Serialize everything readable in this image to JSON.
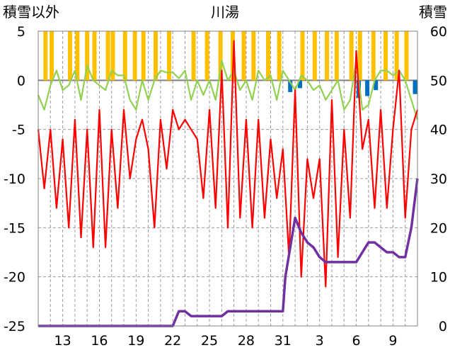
{
  "chart_data": {
    "type": "line",
    "title": "川湯",
    "ylabel_left": "積雪以外",
    "ylabel_right": "積雪",
    "ylim_left": [
      -25,
      5
    ],
    "yticks_left": [
      5,
      0,
      -5,
      -10,
      -15,
      -20,
      -25
    ],
    "ylim_right": [
      0,
      60
    ],
    "yticks_right": [
      60,
      50,
      40,
      30,
      20,
      10,
      0
    ],
    "xlim_day": [
      11,
      42
    ],
    "xticks": [
      {
        "label": "13",
        "day": 13
      },
      {
        "label": "16",
        "day": 16
      },
      {
        "label": "19",
        "day": 19
      },
      {
        "label": "22",
        "day": 22
      },
      {
        "label": "25",
        "day": 25
      },
      {
        "label": "28",
        "day": 28
      },
      {
        "label": "31",
        "day": 31
      },
      {
        "label": "3",
        "day": 34
      },
      {
        "label": "6",
        "day": 37
      },
      {
        "label": "9",
        "day": 40
      }
    ],
    "grid": true,
    "colors": {
      "temp_max": "#92d050",
      "temp_min": "#ff0000",
      "snow_depth": "#7030a0",
      "sunshine": "#ffc000",
      "precip": "#0070c0",
      "zero_line": "#808080"
    },
    "series": [
      {
        "key": "temp_max",
        "axis": "left",
        "x": [
          11,
          11.5,
          12,
          12.5,
          13,
          13.5,
          14,
          14.5,
          15,
          15.5,
          16,
          16.5,
          17,
          17.5,
          18,
          18.5,
          19,
          19.5,
          20,
          20.5,
          21,
          21.5,
          22,
          22.5,
          23,
          23.5,
          24,
          24.5,
          25,
          25.5,
          26,
          26.5,
          27,
          27.5,
          28,
          28.5,
          29,
          29.5,
          30,
          30.5,
          31,
          31.5,
          32,
          32.5,
          33,
          33.5,
          34,
          34.5,
          35,
          35.5,
          36,
          36.5,
          37,
          37.5,
          38,
          38.5,
          39,
          39.5,
          40,
          40.5,
          41,
          41.5,
          42
        ],
        "y": [
          -1.5,
          -3,
          -0.5,
          1,
          -1,
          -0.5,
          1,
          -2,
          1.5,
          0,
          -0.5,
          -1,
          1,
          0.5,
          0.5,
          -2,
          -3,
          0,
          -2,
          0,
          1,
          0.8,
          0.8,
          0.2,
          1,
          -2,
          0,
          -1.5,
          0,
          -2,
          2,
          0,
          1,
          -1,
          0,
          -2,
          1,
          0,
          0.5,
          -2,
          1,
          0,
          -1,
          0.5,
          0,
          -1,
          -0.5,
          -2,
          -1,
          0,
          -3,
          -2,
          2,
          -3,
          -2.5,
          0,
          1,
          1,
          0.5,
          1,
          0,
          -2,
          -4
        ]
      },
      {
        "key": "temp_min",
        "axis": "left",
        "x": [
          11,
          11.5,
          12,
          12.5,
          13,
          13.5,
          14,
          14.5,
          15,
          15.5,
          16,
          16.5,
          17,
          17.5,
          18,
          18.5,
          19,
          19.5,
          20,
          20.5,
          21,
          21.5,
          22,
          22.5,
          23,
          23.5,
          24,
          24.5,
          25,
          25.5,
          26,
          26.5,
          27,
          27.5,
          28,
          28.5,
          29,
          29.5,
          30,
          30.5,
          31,
          31.5,
          32,
          32.5,
          33,
          33.5,
          34,
          34.5,
          35,
          35.5,
          36,
          36.5,
          37,
          37.5,
          38,
          38.5,
          39,
          39.5,
          40,
          40.5,
          41,
          41.5,
          42
        ],
        "y": [
          -5,
          -11,
          -5,
          -13,
          -6,
          -15,
          -4,
          -16,
          -5,
          -17,
          -3,
          -17,
          -5,
          -13,
          -3,
          -10,
          -6,
          -4,
          -7,
          -15,
          -4,
          -9,
          -3,
          -5,
          -4,
          -5,
          -6,
          -12,
          -3,
          -13,
          1,
          -15,
          4,
          -14,
          -4,
          -15,
          -4,
          -14,
          -6,
          -12,
          -7,
          -18,
          -1,
          -20,
          -8,
          -12,
          -8,
          -21,
          -2,
          -18,
          -5,
          -14,
          3,
          -7,
          -4,
          -13,
          -3,
          -13,
          -5,
          1,
          -14,
          -5,
          -3
        ]
      },
      {
        "key": "snow_depth",
        "axis": "right",
        "x": [
          11,
          22,
          22.5,
          23,
          23.5,
          24,
          25,
          25.5,
          26,
          26.5,
          27,
          28,
          29,
          30,
          31,
          31.2,
          31.6,
          32,
          32.5,
          33,
          33.5,
          34,
          34.5,
          35,
          35.5,
          36,
          36.5,
          37,
          37.5,
          38,
          38.5,
          39,
          39.5,
          40,
          40.5,
          41,
          41.5,
          42
        ],
        "y": [
          0,
          0,
          3,
          3,
          2,
          2,
          2,
          2,
          2,
          3,
          3,
          3,
          3,
          3,
          3,
          10,
          16,
          22,
          19,
          17,
          16,
          14,
          13,
          13,
          13,
          13,
          13,
          13,
          15,
          17,
          17,
          16,
          15,
          15,
          14,
          14,
          20,
          30
        ]
      },
      {
        "key": "sunshine",
        "axis": "left",
        "days": [
          11.6,
          12.1,
          13.6,
          14.2,
          15.0,
          15.6,
          16.7,
          17.1,
          18.1,
          18.9,
          19.6,
          20.6,
          21.7,
          23.7,
          24.8,
          25.9,
          26.9,
          27.8,
          28.6,
          29.8,
          30.7,
          32.6,
          33.6,
          34.6,
          35.4,
          36.6,
          37.3,
          38.4,
          39.4,
          40.3,
          41.1
        ],
        "values": [
          5,
          5,
          5,
          5,
          5,
          5,
          5,
          5,
          5,
          5,
          5,
          5,
          5,
          5,
          5,
          5,
          5,
          5,
          5,
          5,
          5,
          5,
          5,
          5,
          5,
          5,
          5,
          5,
          5,
          5,
          5
        ]
      },
      {
        "key": "precip",
        "axis": "left",
        "days": [
          31.6,
          32.4,
          37.2,
          37.9,
          38.6,
          41.8
        ],
        "values": [
          -1.2,
          -0.8,
          -1.8,
          -1.6,
          -1.0,
          -1.4
        ]
      }
    ]
  }
}
